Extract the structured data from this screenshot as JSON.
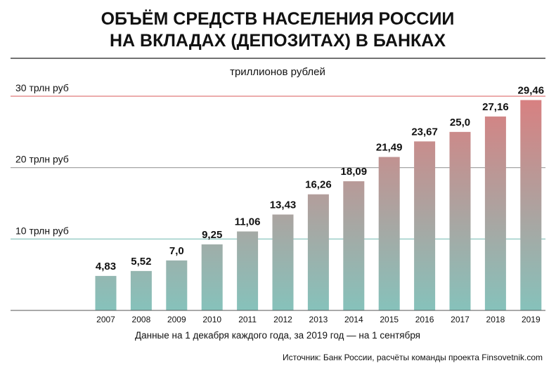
{
  "chart_data": {
    "type": "bar",
    "title_lines": [
      "ОБЪЁМ СРЕДСТВ НАСЕЛЕНИЯ РОССИИ",
      "НА ВКЛАДАХ (ДЕПОЗИТАХ) В БАНКАХ"
    ],
    "unit_label": "триллионов рублей",
    "categories": [
      "2007",
      "2008",
      "2009",
      "2010",
      "2011",
      "2012",
      "2013",
      "2014",
      "2015",
      "2016",
      "2017",
      "2018",
      "2019"
    ],
    "values": [
      4.83,
      5.52,
      7.0,
      9.25,
      11.06,
      13.43,
      16.26,
      18.09,
      21.49,
      23.67,
      25.0,
      27.16,
      29.46
    ],
    "value_labels": [
      "4,83",
      "5,52",
      "7,0",
      "9,25",
      "11,06",
      "13,43",
      "16,26",
      "18,09",
      "21,49",
      "23,67",
      "25,0",
      "27,16",
      "29,46"
    ],
    "reference_lines": [
      {
        "value": 10,
        "label": "10 трлн руб",
        "color": "#7fc0b8"
      },
      {
        "value": 20,
        "label": "20 трлн руб",
        "color": "#9a9a9a"
      },
      {
        "value": 30,
        "label": "30 трлн руб",
        "color": "#e07a7a"
      }
    ],
    "ylim": [
      0,
      30
    ],
    "note": "Данные на 1 декабря каждого года, за 2019 год — на 1 сентября",
    "source": "Источник: Банк России, расчёты команды проекта Finsovetnik.com",
    "colors": {
      "bar_bottom": "#86c2bb",
      "bar_top": "#d97f80",
      "axis": "#555555",
      "title_rule": "#444444"
    },
    "grid": false
  }
}
